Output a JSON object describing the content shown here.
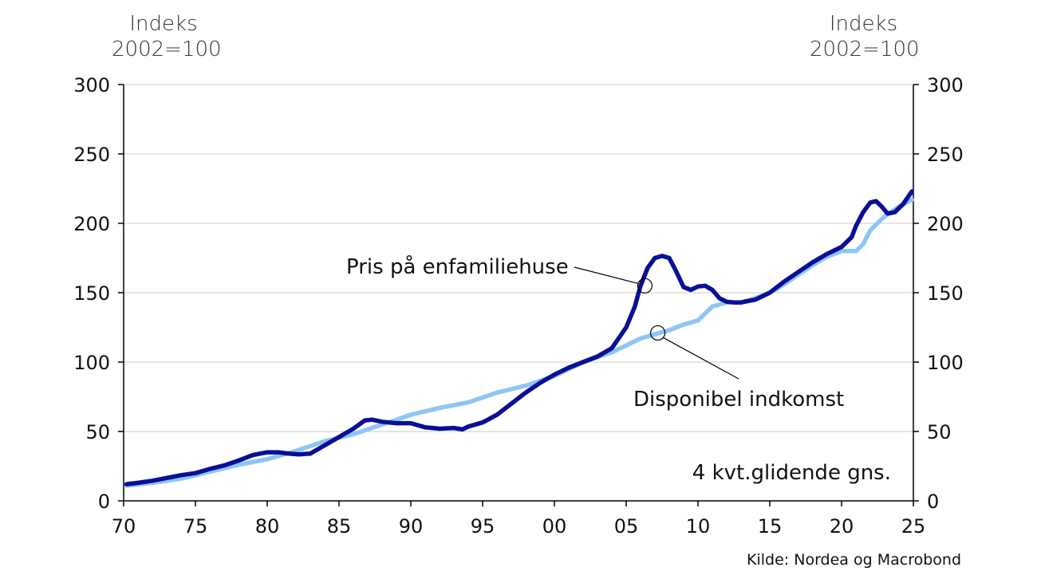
{
  "left_axis_title": [
    "Indeks",
    "2002=100"
  ],
  "right_axis_title": [
    "Indeks",
    "2002=100"
  ],
  "note": "4 kvt.glidende gns.",
  "source": "Kilde: Nordea og Macrobond",
  "colors": {
    "house": "#0a0f96",
    "income": "#8ec5f5",
    "grid": "#c8c8c8",
    "axis": "#000000"
  },
  "chart_data": {
    "type": "line",
    "xlabel": "",
    "ylabel": "Indeks 2002=100",
    "xlim": [
      1970,
      2025
    ],
    "ylim": [
      0,
      300
    ],
    "grid": "horizontal",
    "x_ticks": [
      1970,
      1975,
      1980,
      1985,
      1990,
      1995,
      2000,
      2005,
      2010,
      2015,
      2020,
      2025
    ],
    "x_tick_labels": [
      "70",
      "75",
      "80",
      "85",
      "90",
      "95",
      "00",
      "05",
      "10",
      "15",
      "20",
      "25"
    ],
    "y_ticks": [
      0,
      50,
      100,
      150,
      200,
      250,
      300
    ],
    "series": [
      {
        "name": "Pris på enfamiliehuse",
        "x": [
          1970.2,
          1971,
          1972,
          1973,
          1974,
          1975,
          1976,
          1977,
          1978,
          1979,
          1980,
          1980.8,
          1981.5,
          1982.2,
          1983,
          1984,
          1985,
          1986,
          1986.8,
          1987.3,
          1988,
          1989,
          1990,
          1991,
          1992,
          1993,
          1993.6,
          1994,
          1995,
          1996,
          1997,
          1998,
          1999,
          2000,
          2001,
          2002,
          2003,
          2004,
          2005,
          2005.6,
          2006,
          2006.5,
          2007,
          2007.5,
          2008,
          2008.5,
          2009,
          2009.5,
          2010,
          2010.5,
          2011,
          2011.5,
          2012,
          2012.5,
          2013,
          2014,
          2015,
          2016,
          2017,
          2018,
          2019,
          2020,
          2020.7,
          2021,
          2021.5,
          2022,
          2022.4,
          2022.8,
          2023.2,
          2023.7,
          2024.3,
          2024.9
        ],
        "values": [
          12,
          13,
          14.5,
          16.5,
          18.5,
          20,
          23,
          25.5,
          29,
          33,
          35,
          35,
          34,
          33.5,
          34,
          40,
          46,
          52,
          58,
          58.5,
          57,
          56,
          56,
          53,
          52,
          52.5,
          51.5,
          53.5,
          56.5,
          62,
          70,
          78,
          85,
          91,
          96,
          100,
          104,
          110,
          125,
          140,
          155,
          168,
          175,
          176.5,
          175,
          165,
          154,
          152,
          154.5,
          155,
          152,
          146,
          143.5,
          143,
          143,
          145,
          150,
          158,
          165,
          172,
          178,
          183,
          190,
          198,
          208,
          215,
          216,
          212,
          207,
          208,
          214,
          223
        ]
      },
      {
        "name": "Disponibel indkomst",
        "x": [
          1970.2,
          1972,
          1974,
          1976,
          1978,
          1980,
          1982,
          1984,
          1986,
          1988,
          1990,
          1992,
          1994,
          1996,
          1998,
          2000,
          2002,
          2004,
          2006,
          2007,
          2008,
          2009,
          2010,
          2011,
          2012,
          2013,
          2014,
          2015,
          2016,
          2017,
          2018,
          2019,
          2020,
          2021,
          2021.5,
          2022,
          2023,
          2024,
          2024.9
        ],
        "values": [
          11,
          13,
          16,
          21,
          26,
          30,
          36,
          43,
          48,
          55,
          62,
          67,
          71,
          78,
          83,
          90,
          100,
          107,
          117,
          120,
          123,
          127,
          130,
          140,
          143,
          143,
          146,
          150,
          156,
          163,
          170,
          176,
          180,
          180,
          185,
          195,
          205,
          212,
          217
        ]
      }
    ],
    "annotations": [
      "Pris på enfamiliehuse",
      "Disponibel indkomst",
      "4 kvt.glidende gns."
    ]
  }
}
